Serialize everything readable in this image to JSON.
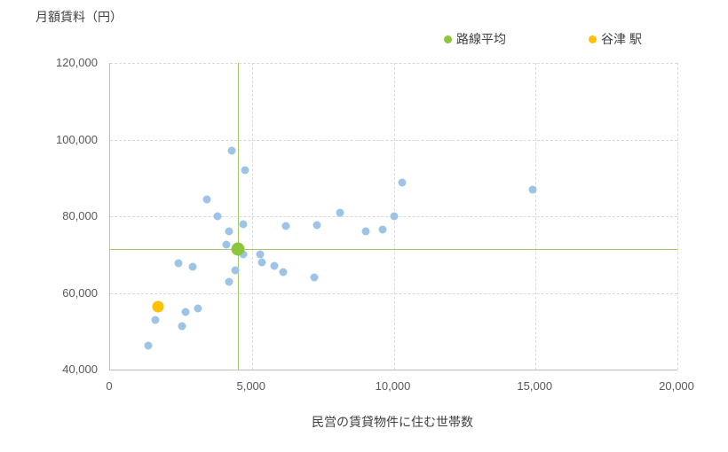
{
  "chart_data": {
    "type": "scatter",
    "y_axis_title": "月額賃料（円）",
    "x_axis_title": "民営の賃貸物件に住む世帯数",
    "xlim": [
      0,
      20000
    ],
    "ylim": [
      40000,
      120000
    ],
    "grid": true,
    "legend_position": "top",
    "x_ticks": [
      {
        "value": 0,
        "label": "0"
      },
      {
        "value": 5000,
        "label": "5,000"
      },
      {
        "value": 10000,
        "label": "10,000"
      },
      {
        "value": 15000,
        "label": "15,000"
      },
      {
        "value": 20000,
        "label": "20,000"
      }
    ],
    "y_ticks": [
      {
        "value": 40000,
        "label": "40,000"
      },
      {
        "value": 60000,
        "label": "60,000"
      },
      {
        "value": 80000,
        "label": "80,000"
      },
      {
        "value": 100000,
        "label": "100,000"
      },
      {
        "value": 120000,
        "label": "120,000"
      }
    ],
    "legend": [
      {
        "label": "路線平均",
        "color": "#8CC63E"
      },
      {
        "label": "谷津 駅",
        "color": "#FFC000"
      }
    ],
    "series": [
      {
        "color": "#9DC3E6",
        "marker_size": 9,
        "points": [
          [
            1350,
            46200
          ],
          [
            1600,
            53000
          ],
          [
            2550,
            51300
          ],
          [
            2650,
            55000
          ],
          [
            3100,
            56000
          ],
          [
            2400,
            67800
          ],
          [
            2900,
            66800
          ],
          [
            4200,
            63000
          ],
          [
            4400,
            65800
          ],
          [
            4100,
            72500
          ],
          [
            4200,
            76000
          ],
          [
            3800,
            80000
          ],
          [
            3400,
            84500
          ],
          [
            4300,
            97000
          ],
          [
            4750,
            92000
          ],
          [
            4700,
            78000
          ],
          [
            4700,
            70000
          ],
          [
            5300,
            70000
          ],
          [
            5350,
            68000
          ],
          [
            5800,
            67000
          ],
          [
            6100,
            65500
          ],
          [
            6200,
            77500
          ],
          [
            7300,
            77800
          ],
          [
            7200,
            64000
          ],
          [
            8100,
            81000
          ],
          [
            9000,
            76000
          ],
          [
            9600,
            76500
          ],
          [
            10000,
            80000
          ],
          [
            10300,
            88700
          ],
          [
            14900,
            87000
          ]
        ]
      }
    ],
    "route_average": {
      "label": "路線平均",
      "x": 4500,
      "y": 71500,
      "color": "#8CC63E",
      "marker_size": 15,
      "crosshair_color": "#A3C96A"
    },
    "station": {
      "label": "谷津 駅",
      "x": 1700,
      "y": 56500,
      "color": "#FFC000",
      "marker_size": 13
    },
    "colors": {
      "gridline": "#D9D9D9",
      "axis_line": "#BFBFBF",
      "tick_text": "#595959"
    }
  }
}
